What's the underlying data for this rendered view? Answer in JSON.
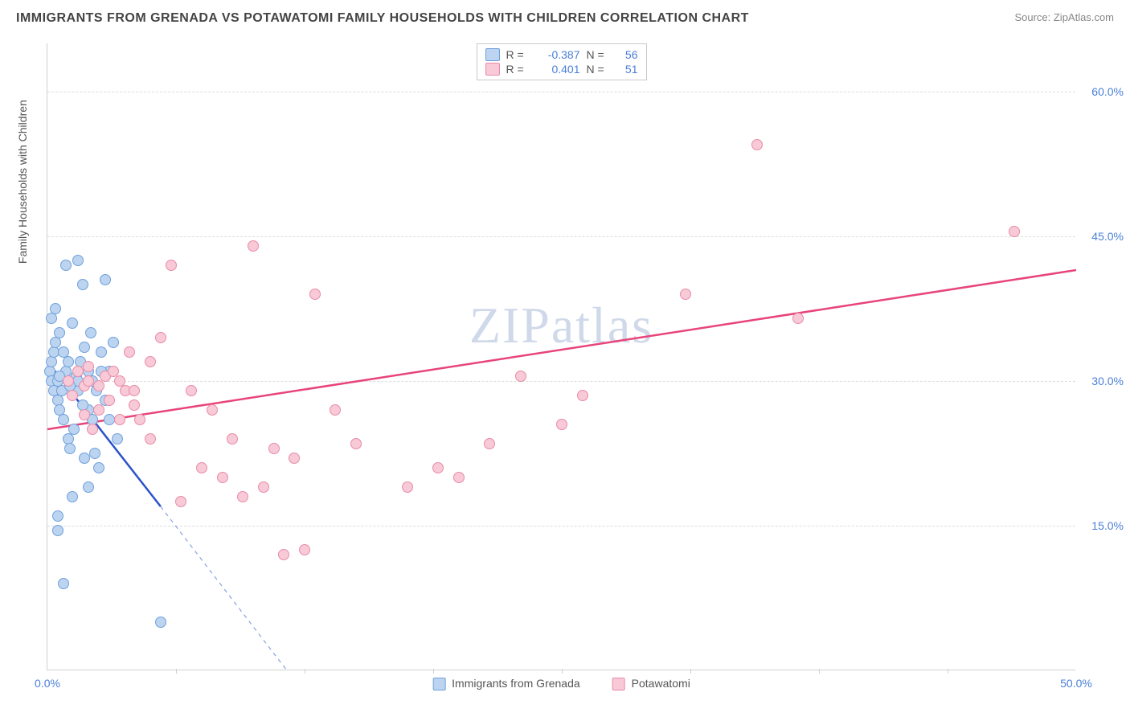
{
  "title": "IMMIGRANTS FROM GRENADA VS POTAWATOMI FAMILY HOUSEHOLDS WITH CHILDREN CORRELATION CHART",
  "source_label": "Source: ZipAtlas.com",
  "watermark": "ZIPatlas",
  "ylabel": "Family Households with Children",
  "chart": {
    "type": "scatter",
    "xlim": [
      0,
      50
    ],
    "ylim": [
      0,
      65
    ],
    "xticks": [
      0.0,
      50.0
    ],
    "xtick_labels": [
      "0.0%",
      "50.0%"
    ],
    "yticks": [
      15.0,
      30.0,
      45.0,
      60.0
    ],
    "ytick_labels": [
      "15.0%",
      "30.0%",
      "45.0%",
      "60.0%"
    ],
    "x_minor_ticks": [
      6.25,
      12.5,
      18.75,
      25.0,
      31.25,
      37.5,
      43.75
    ],
    "background_color": "#ffffff",
    "grid_color": "#dcdcdc",
    "axis_color": "#d0d0d0",
    "tick_label_color": "#4a7fd8",
    "series": [
      {
        "name": "Immigrants from Grenada",
        "fill": "#bcd4f0",
        "stroke": "#6fa0dd",
        "trend_color": "#2a54c8",
        "r_value": "-0.387",
        "n_value": "56",
        "trend": {
          "x1": 0,
          "y1": 32,
          "x2": 5.5,
          "y2": 17,
          "dash_x2": 12,
          "dash_y2": -1
        },
        "points": [
          [
            0.1,
            31
          ],
          [
            0.2,
            32
          ],
          [
            0.2,
            30
          ],
          [
            0.3,
            29
          ],
          [
            0.3,
            33
          ],
          [
            0.4,
            34
          ],
          [
            0.5,
            30
          ],
          [
            0.5,
            28
          ],
          [
            0.6,
            27
          ],
          [
            0.6,
            35
          ],
          [
            0.7,
            29
          ],
          [
            0.8,
            26
          ],
          [
            0.8,
            33
          ],
          [
            0.9,
            31
          ],
          [
            1.0,
            30
          ],
          [
            1.0,
            24
          ],
          [
            1.1,
            23
          ],
          [
            1.2,
            36
          ],
          [
            1.3,
            25
          ],
          [
            1.4,
            30.5
          ],
          [
            1.5,
            29
          ],
          [
            1.5,
            42.5
          ],
          [
            1.6,
            32
          ],
          [
            1.7,
            40
          ],
          [
            1.8,
            33.5
          ],
          [
            1.8,
            22
          ],
          [
            2.0,
            27
          ],
          [
            2.0,
            31
          ],
          [
            2.1,
            35
          ],
          [
            2.2,
            30
          ],
          [
            2.2,
            26
          ],
          [
            2.3,
            22.5
          ],
          [
            2.4,
            29
          ],
          [
            2.5,
            21
          ],
          [
            2.6,
            33
          ],
          [
            2.8,
            28
          ],
          [
            2.8,
            40.5
          ],
          [
            3.0,
            31
          ],
          [
            3.0,
            26
          ],
          [
            3.2,
            34
          ],
          [
            3.4,
            24
          ],
          [
            0.5,
            16
          ],
          [
            0.5,
            14.5
          ],
          [
            1.2,
            18
          ],
          [
            2.0,
            19
          ],
          [
            0.8,
            9
          ],
          [
            0.9,
            42
          ],
          [
            1.7,
            27.5
          ],
          [
            0.2,
            36.5
          ],
          [
            0.4,
            37.5
          ],
          [
            2.6,
            31
          ],
          [
            1.5,
            30
          ],
          [
            1.0,
            32
          ],
          [
            5.5,
            5
          ],
          [
            0.6,
            30.5
          ],
          [
            1.1,
            29.5
          ]
        ]
      },
      {
        "name": "Potawatomi",
        "fill": "#f8c9d7",
        "stroke": "#e88ba7",
        "trend_color": "#e8447a",
        "r_value": "0.401",
        "n_value": "51",
        "trend": {
          "x1": 0,
          "y1": 25,
          "x2": 50,
          "y2": 41.5
        },
        "points": [
          [
            1.0,
            30
          ],
          [
            1.2,
            28.5
          ],
          [
            1.5,
            31
          ],
          [
            1.8,
            29.5
          ],
          [
            2.0,
            30
          ],
          [
            2.2,
            25
          ],
          [
            2.5,
            27
          ],
          [
            2.8,
            30.5
          ],
          [
            3.0,
            28
          ],
          [
            3.2,
            31
          ],
          [
            3.5,
            26
          ],
          [
            3.8,
            29
          ],
          [
            4.0,
            33
          ],
          [
            4.2,
            27.5
          ],
          [
            4.5,
            26
          ],
          [
            5.0,
            24
          ],
          [
            5.5,
            34.5
          ],
          [
            6.0,
            42
          ],
          [
            6.5,
            17.5
          ],
          [
            7.0,
            29
          ],
          [
            7.5,
            21
          ],
          [
            8.0,
            27
          ],
          [
            8.5,
            20
          ],
          [
            9.0,
            24
          ],
          [
            9.5,
            18
          ],
          [
            10.0,
            44
          ],
          [
            10.5,
            19
          ],
          [
            11.0,
            23
          ],
          [
            11.5,
            12
          ],
          [
            12.0,
            22
          ],
          [
            12.5,
            12.5
          ],
          [
            13.0,
            39
          ],
          [
            14.0,
            27
          ],
          [
            15.0,
            23.5
          ],
          [
            17.5,
            19
          ],
          [
            19.0,
            21
          ],
          [
            20.0,
            20
          ],
          [
            21.5,
            23.5
          ],
          [
            23.0,
            30.5
          ],
          [
            25.0,
            25.5
          ],
          [
            26.0,
            28.5
          ],
          [
            31.0,
            39
          ],
          [
            34.5,
            54.5
          ],
          [
            36.5,
            36.5
          ],
          [
            47.0,
            45.5
          ],
          [
            2.0,
            31.5
          ],
          [
            3.5,
            30
          ],
          [
            4.2,
            29
          ],
          [
            5.0,
            32
          ],
          [
            1.8,
            26.5
          ],
          [
            2.5,
            29.5
          ]
        ]
      }
    ],
    "legend_box": {
      "r_label": "R =",
      "n_label": "N ="
    },
    "xaxis_legend_labels": [
      "Immigrants from Grenada",
      "Potawatomi"
    ]
  }
}
